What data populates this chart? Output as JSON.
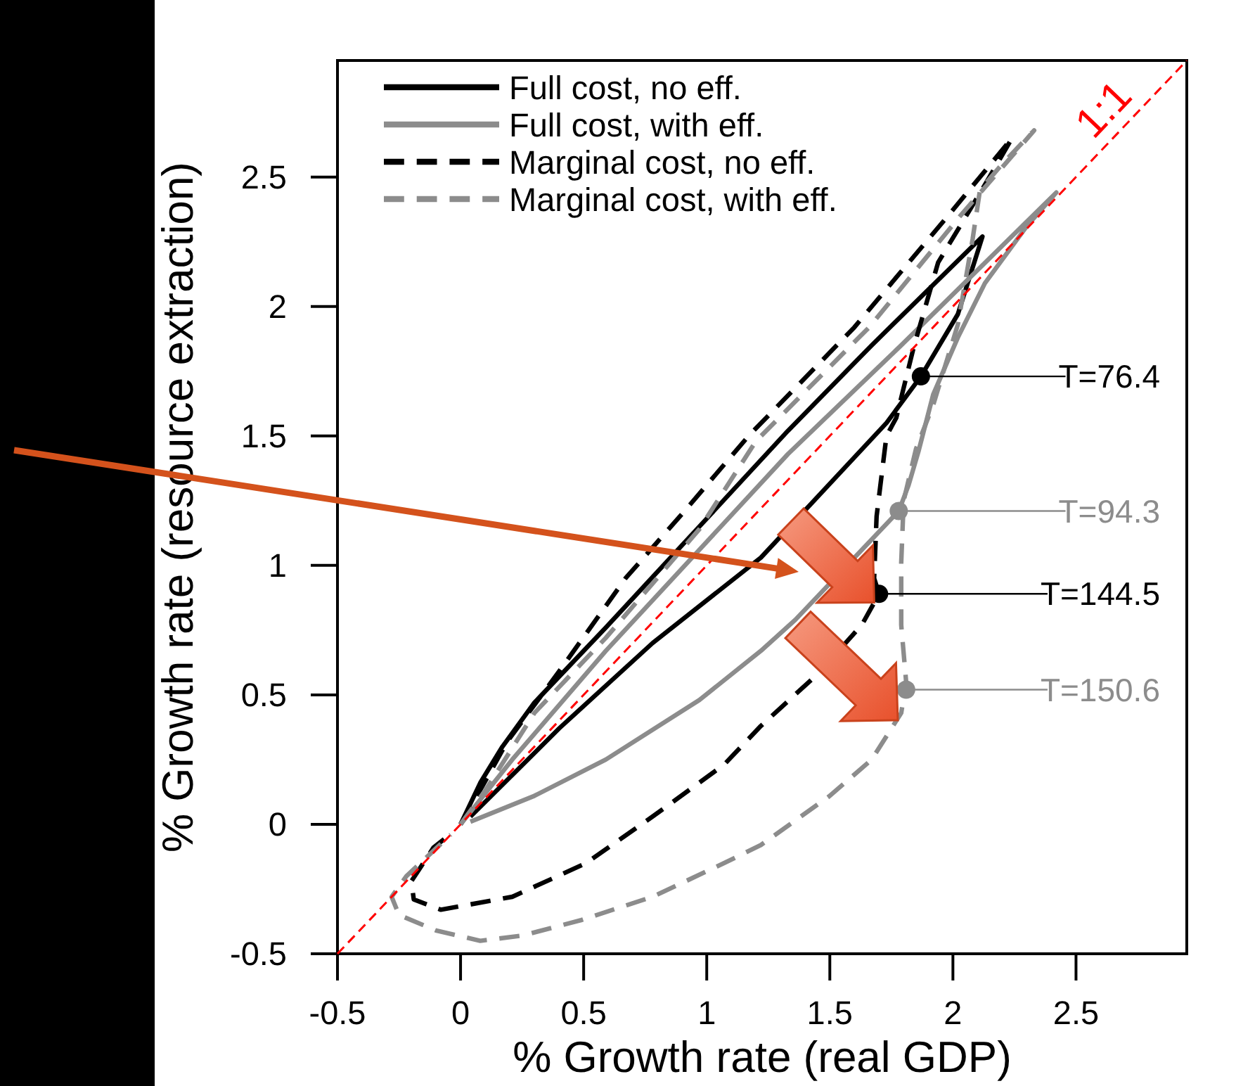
{
  "chart_data": {
    "type": "line",
    "xlabel": "% Growth rate (real GDP)",
    "ylabel": "% Growth rate (resource extraction)",
    "xlim": [
      -0.5,
      2.95
    ],
    "ylim": [
      -0.5,
      2.95
    ],
    "xticks": [
      -0.5,
      0,
      0.5,
      1,
      1.5,
      2,
      2.5
    ],
    "yticks": [
      -0.5,
      0,
      0.5,
      1,
      1.5,
      2,
      2.5
    ],
    "legend": "top left",
    "series": [
      {
        "name": "Full cost, no eff.",
        "color": "#000000",
        "line_style": "solid",
        "x": [
          0,
          0.01,
          0.08,
          0.17,
          0.3,
          0.59,
          0.97,
          1.33,
          1.67,
          2.12,
          2.02,
          1.87,
          1.73,
          1.22,
          0.78,
          0.4,
          0.04
        ],
        "values": [
          0,
          0.02,
          0.16,
          0.3,
          0.47,
          0.76,
          1.15,
          1.52,
          1.85,
          2.27,
          1.97,
          1.73,
          1.55,
          1.03,
          0.7,
          0.37,
          0.03
        ]
      },
      {
        "name": "Full cost, with eff.",
        "color": "#8c8c8c",
        "line_style": "solid",
        "x": [
          0,
          0.21,
          0.59,
          1.33,
          1.79,
          2.42,
          2.3,
          2.13,
          2.02,
          1.92,
          1.86,
          1.82,
          1.78,
          1.36,
          1.22,
          0.97,
          0.59,
          0.3,
          0.04
        ],
        "values": [
          0,
          0.25,
          0.67,
          1.43,
          1.85,
          2.44,
          2.31,
          2.09,
          1.88,
          1.66,
          1.44,
          1.31,
          1.21,
          0.79,
          0.67,
          0.48,
          0.25,
          0.11,
          0.01
        ]
      },
      {
        "name": "Marginal cost, no eff.",
        "color": "#000000",
        "line_style": "dashed",
        "x": [
          0,
          0.02,
          0.19,
          0.4,
          0.67,
          0.91,
          1.17,
          1.6,
          1.98,
          2.24,
          2.13,
          1.94,
          1.84,
          1.77,
          1.73,
          1.69,
          1.68,
          1.7,
          1.63,
          1.45,
          1.22,
          1.07,
          0.78,
          0.51,
          0.21,
          -0.08,
          -0.19,
          -0.2,
          -0.11,
          -0.03
        ],
        "values": [
          0,
          0.03,
          0.32,
          0.59,
          0.95,
          1.21,
          1.5,
          1.92,
          2.35,
          2.65,
          2.47,
          2.17,
          1.84,
          1.57,
          1.5,
          1.19,
          0.95,
          0.89,
          0.77,
          0.58,
          0.38,
          0.23,
          0.03,
          -0.15,
          -0.28,
          -0.33,
          -0.29,
          -0.22,
          -0.09,
          -0.03
        ]
      },
      {
        "name": "Marginal cost, with eff.",
        "color": "#8c8c8c",
        "line_style": "dashed",
        "x": [
          0,
          0.1,
          0.3,
          0.59,
          0.97,
          1.2,
          1.66,
          2.03,
          2.33,
          2.2,
          2.11,
          2.08,
          2.02,
          1.92,
          1.85,
          1.8,
          1.79,
          1.79,
          1.81,
          1.79,
          1.67,
          1.5,
          1.22,
          1.07,
          0.78,
          0.49,
          0.25,
          0.08,
          -0.1,
          -0.25,
          -0.28,
          -0.22,
          -0.04
        ],
        "values": [
          0,
          0.13,
          0.43,
          0.72,
          1.14,
          1.48,
          1.92,
          2.35,
          2.68,
          2.55,
          2.45,
          2.26,
          1.93,
          1.62,
          1.45,
          1.25,
          1.01,
          0.77,
          0.55,
          0.43,
          0.25,
          0.11,
          -0.08,
          -0.15,
          -0.28,
          -0.37,
          -0.43,
          -0.45,
          -0.41,
          -0.35,
          -0.28,
          -0.2,
          -0.04
        ]
      },
      {
        "color": "#ff0000",
        "line_style": "dashed",
        "x": [
          -0.5,
          2.95
        ],
        "values": [
          -0.5,
          2.95
        ]
      },
      {
        "type": "scatter",
        "marker": "circle",
        "color": "#000000",
        "x": [
          1.87,
          1.7
        ],
        "values": [
          1.73,
          0.89
        ]
      },
      {
        "type": "scatter",
        "marker": "circle",
        "color": "#8c8c8c",
        "x": [
          1.78,
          1.81
        ],
        "values": [
          1.21,
          0.52
        ]
      }
    ],
    "annotations": [
      {
        "text": "1:1",
        "x": 2.69,
        "y": 2.69
      },
      "T=76.4",
      {
        "text": "T=94.3",
        "x": 1.78,
        "y": 1.21
      },
      {
        "text": "T=144.5",
        "x": 1.7,
        "y": 0.89
      },
      "T=150.6"
    ]
  }
}
